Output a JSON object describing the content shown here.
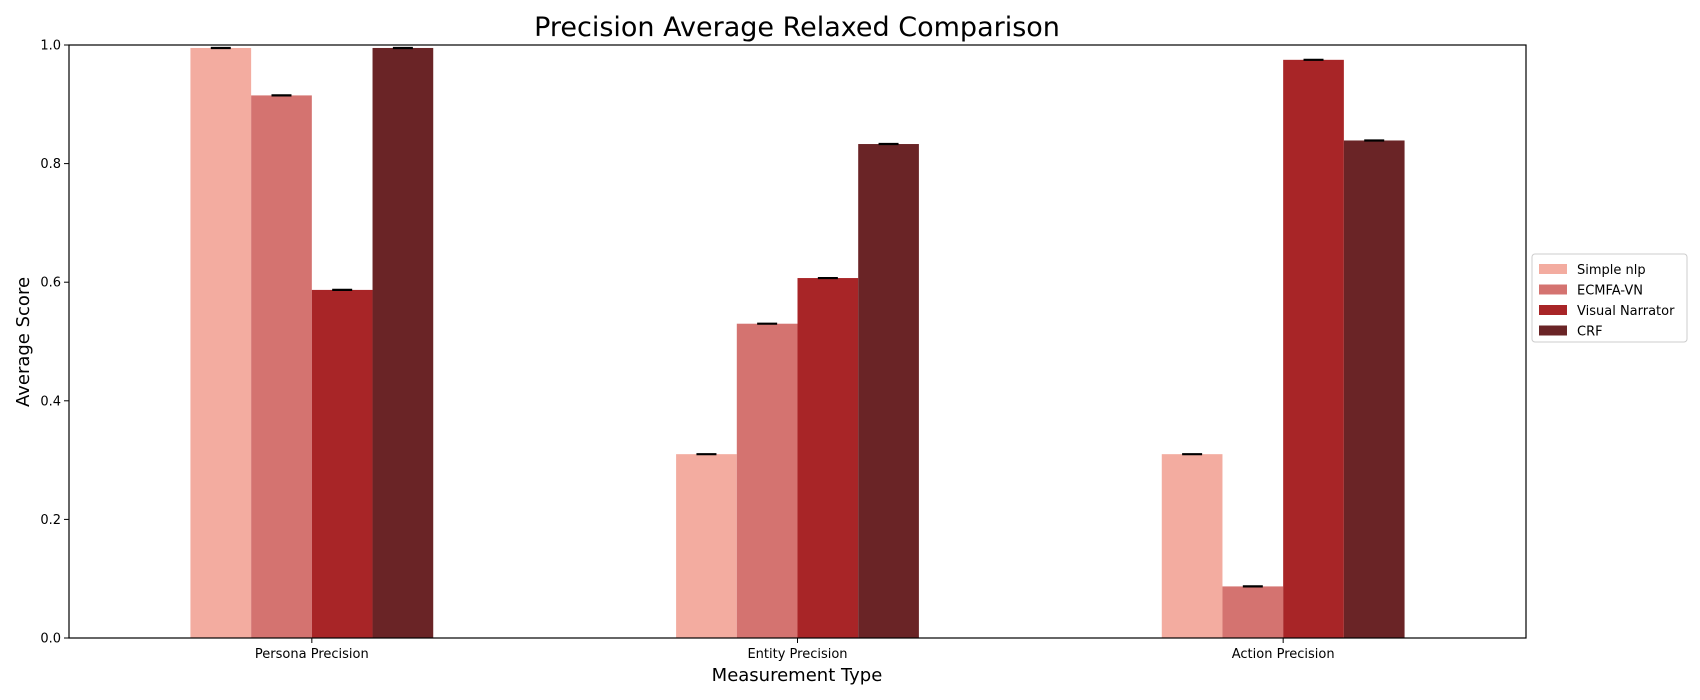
{
  "chart_data": {
    "type": "bar",
    "title": "Precision Average Relaxed Comparison",
    "xlabel": "Measurement Type",
    "ylabel": "Average Score",
    "ylim": [
      0,
      1.0
    ],
    "yticks": [
      "0.0",
      "0.2",
      "0.4",
      "0.6",
      "0.8",
      "1.0"
    ],
    "categories": [
      "Persona Precision",
      "Entity Precision",
      "Action Precision"
    ],
    "series": [
      {
        "name": "Simple nlp",
        "color": "#f3aca0",
        "values": [
          0.995,
          0.31,
          0.31
        ]
      },
      {
        "name": "ECMFA-VN",
        "color": "#d47370",
        "values": [
          0.915,
          0.53,
          0.087
        ]
      },
      {
        "name": "Visual Narrator",
        "color": "#a82527",
        "values": [
          0.587,
          0.607,
          0.975
        ]
      },
      {
        "name": "CRF",
        "color": "#6a2426",
        "values": [
          0.995,
          0.833,
          0.839
        ]
      }
    ],
    "error_bars": true,
    "grid": false,
    "legend_position": "right"
  }
}
